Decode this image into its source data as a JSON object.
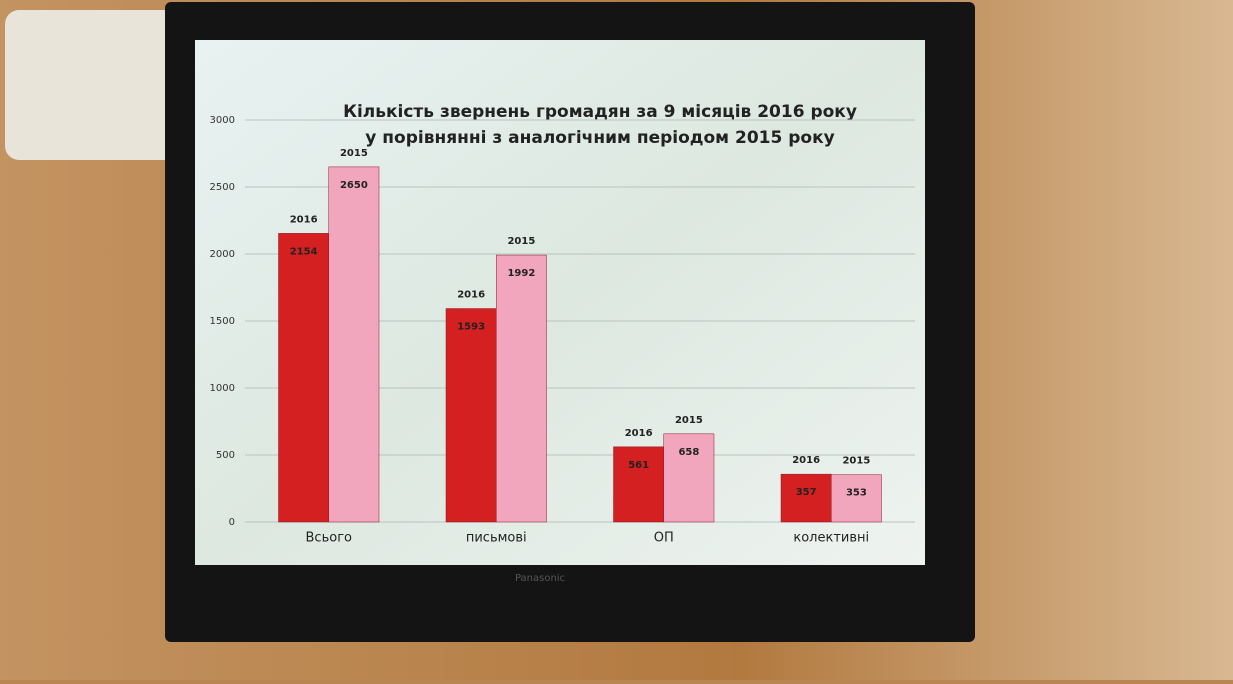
{
  "chart_data": {
    "type": "bar",
    "title": [
      "Кількість звернень громадян за 9 місяців 2016 року",
      "у порівнянні з аналогічним періодом 2015 року"
    ],
    "categories": [
      "Всього",
      "письмові",
      "ОП",
      "колективні"
    ],
    "series": [
      {
        "name": "2016",
        "color": "#d42020",
        "values": [
          2154,
          1593,
          561,
          357
        ]
      },
      {
        "name": "2015",
        "color": "#f2a6be",
        "values": [
          2650,
          1992,
          658,
          353
        ]
      }
    ],
    "ylim": [
      0,
      3000
    ],
    "yticks": [
      0,
      500,
      1000,
      1500,
      2000,
      2500,
      3000
    ],
    "grid": true
  },
  "brand": "Panasonic"
}
